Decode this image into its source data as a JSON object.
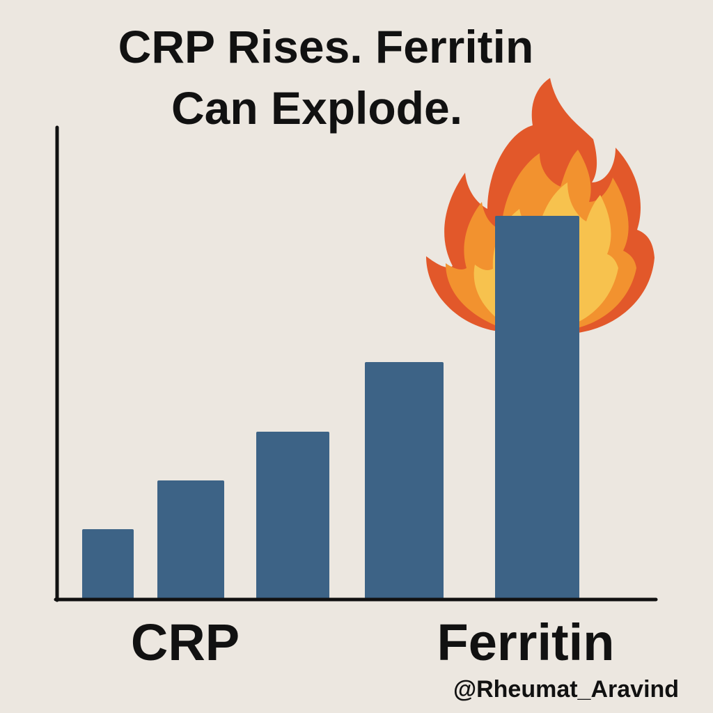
{
  "chart_data": {
    "type": "bar",
    "title_lines": [
      "CRP Rises. Ferritin",
      "Can Explode."
    ],
    "categories": [
      "CRP",
      "",
      "",
      "",
      "Ferritin"
    ],
    "values": [
      1,
      1.7,
      2.4,
      3.4,
      5.5
    ],
    "ylim": [
      0,
      7.6
    ],
    "xlabel": "",
    "ylabel": "",
    "grid": false,
    "bar_color": "#3d6386",
    "axis_color": "#111111",
    "flame_colors": {
      "outer": "#e2582a",
      "middle": "#f2922f",
      "inner": "#f7c24e"
    },
    "flame_on": "Ferritin"
  },
  "footer": {
    "handle": "@Rheumat_Aravind"
  }
}
